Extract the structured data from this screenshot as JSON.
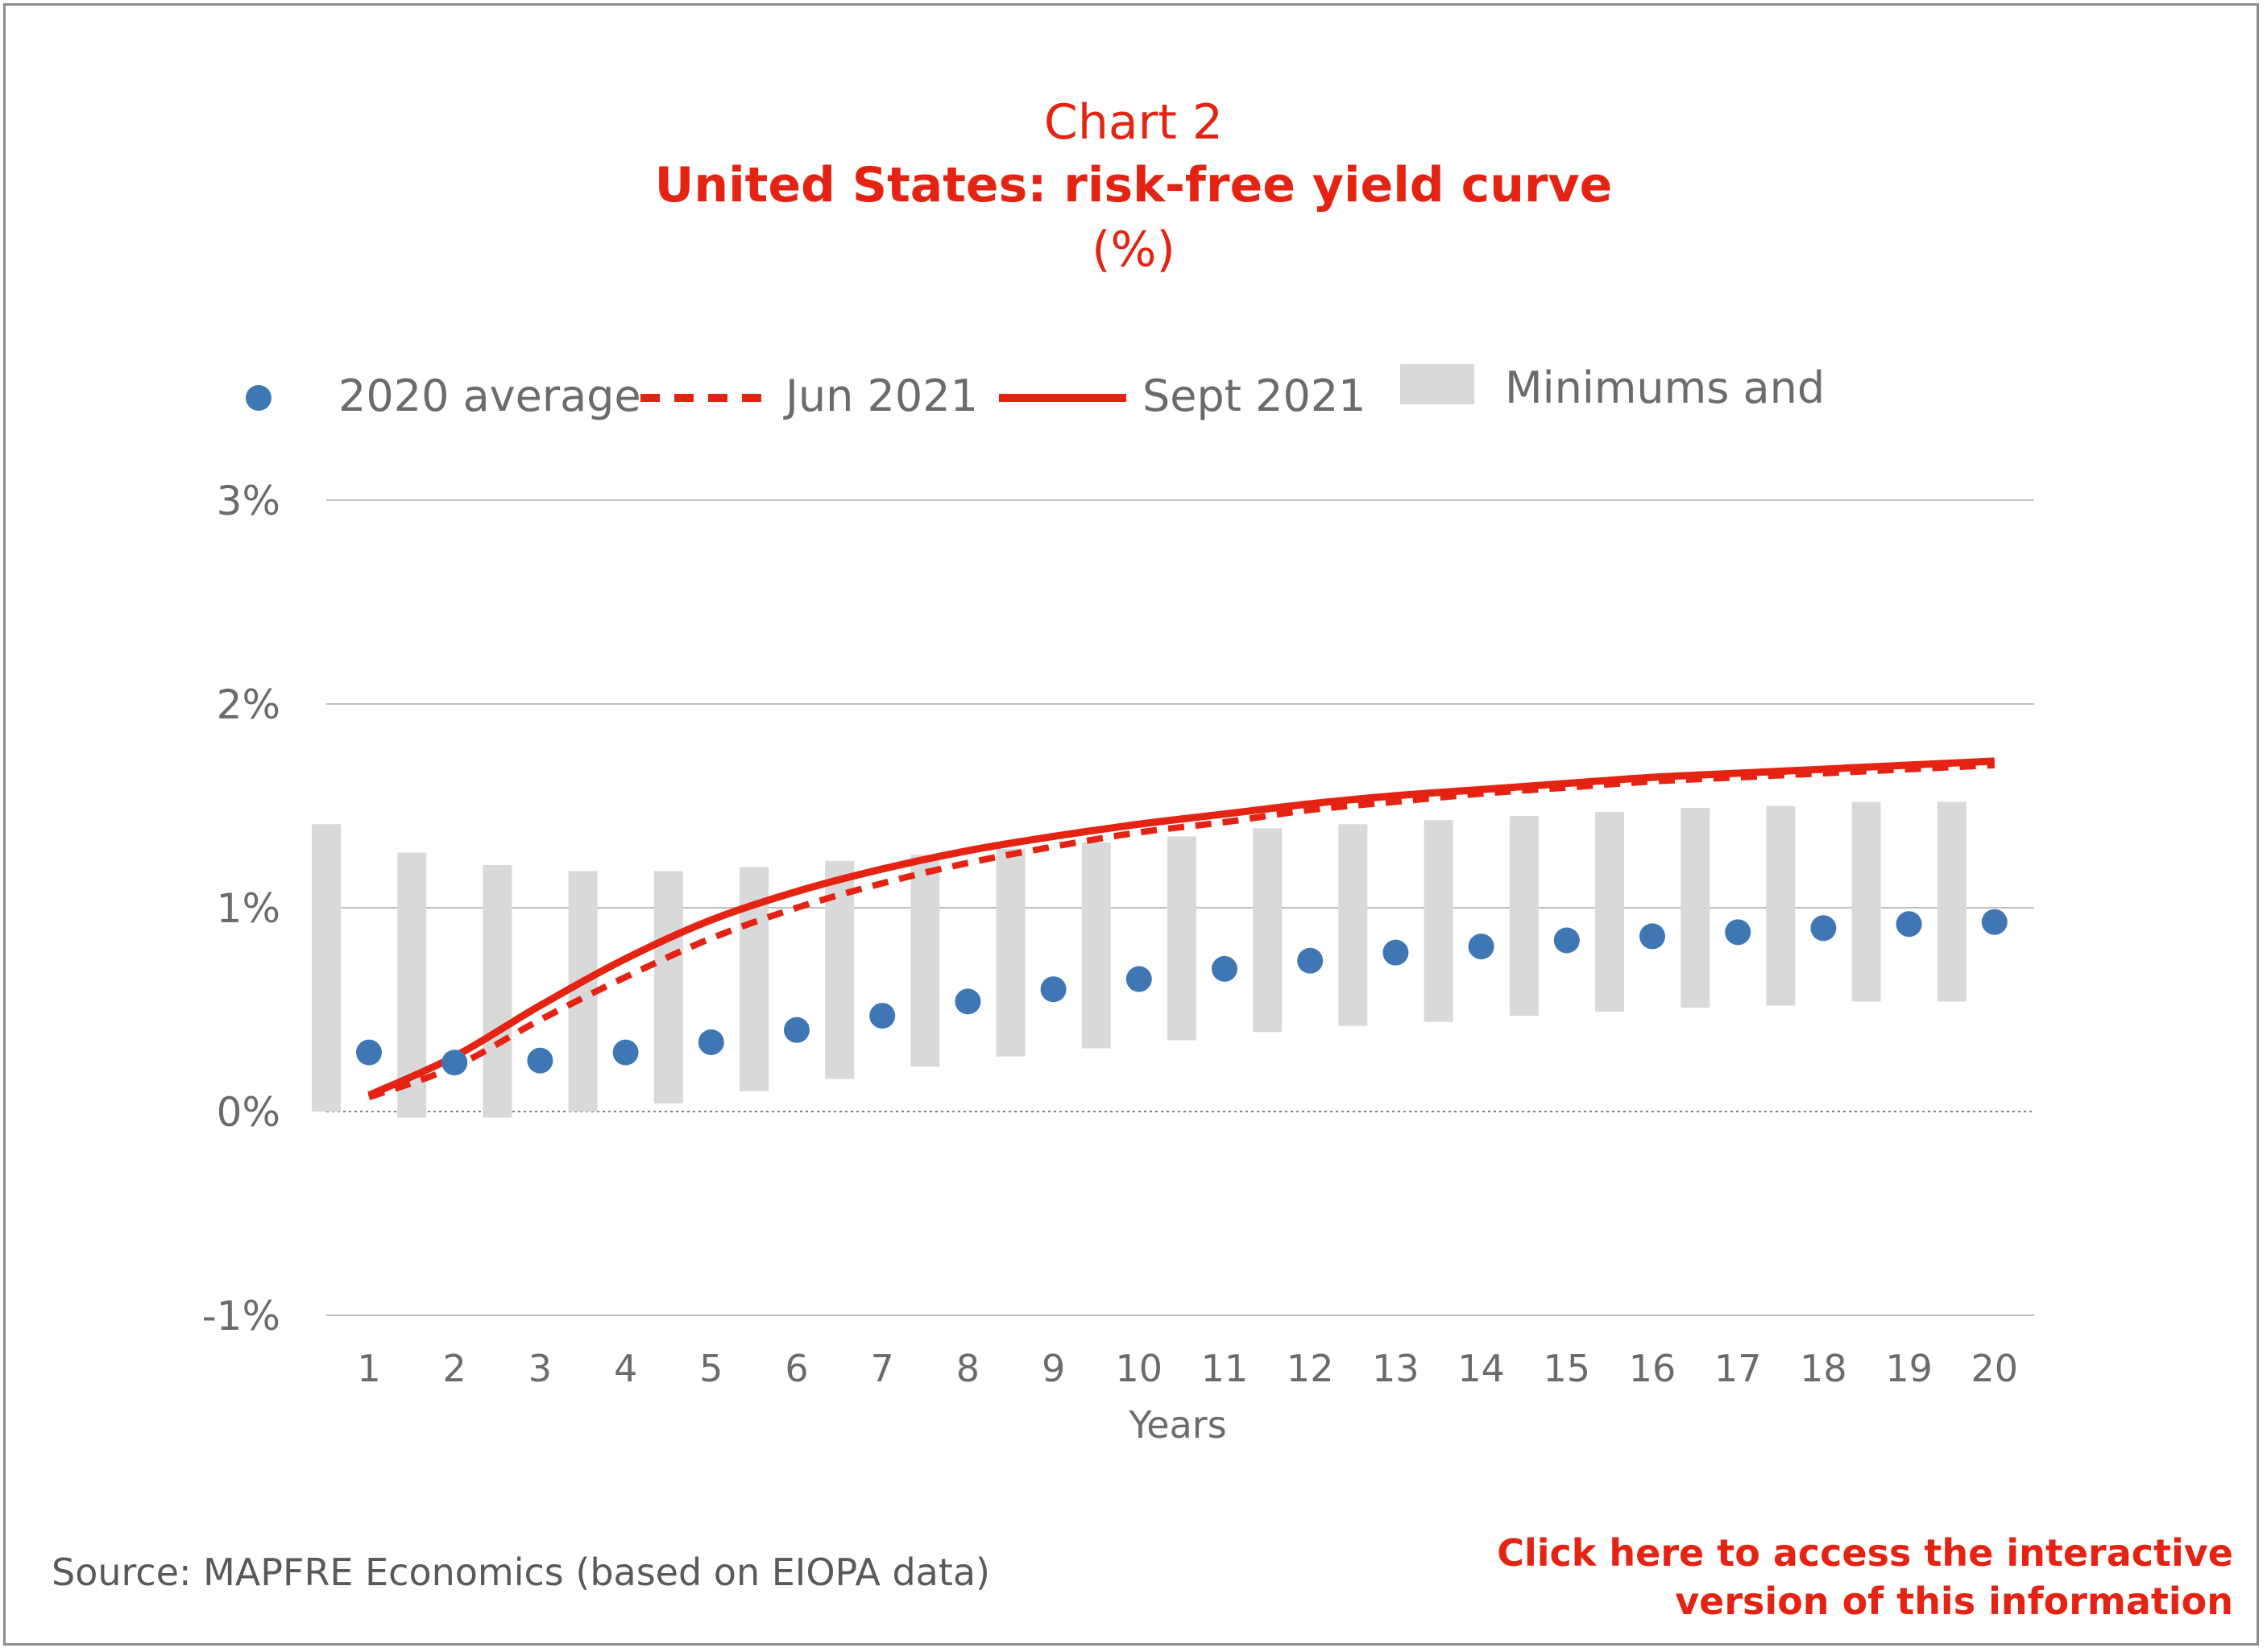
{
  "title": {
    "line1": "Chart 2",
    "line2": "United States: risk-free yield curve",
    "line3": "(%)"
  },
  "legend": {
    "avg": "2020 average",
    "jun": "Jun 2021",
    "sept": "Sept 2021",
    "minmax": "Minimums and"
  },
  "source": "Source: MAPFRE Economics (based on EIOPA data)",
  "link": {
    "line1": "Click here to access the interactive",
    "line2": "version of this information"
  },
  "colors": {
    "red": "#e42313",
    "blue": "#3f77b5",
    "bar": "#d9d9d9"
  },
  "chart_data": {
    "type": "line",
    "xlabel": "Years",
    "ylabel": "",
    "x": [
      1,
      2,
      3,
      4,
      5,
      6,
      7,
      8,
      9,
      10,
      11,
      12,
      13,
      14,
      15,
      16,
      17,
      18,
      19,
      20
    ],
    "ylim": [
      -1,
      3
    ],
    "yticks": [
      -1,
      0,
      1,
      2,
      3
    ],
    "ytick_labels": [
      "-1%",
      "0%",
      "1%",
      "2%",
      "3%"
    ],
    "grid": true,
    "legend_position": "top",
    "series": [
      {
        "name": "2020 average",
        "kind": "scatter",
        "values": [
          0.29,
          0.24,
          0.25,
          0.29,
          0.34,
          0.4,
          0.47,
          0.54,
          0.6,
          0.65,
          0.7,
          0.74,
          0.78,
          0.81,
          0.84,
          0.86,
          0.88,
          0.9,
          0.92,
          0.93
        ]
      },
      {
        "name": "Jun 2021",
        "kind": "dashed-line",
        "values": [
          0.07,
          0.22,
          0.45,
          0.66,
          0.85,
          1.0,
          1.12,
          1.22,
          1.3,
          1.37,
          1.42,
          1.48,
          1.52,
          1.56,
          1.59,
          1.62,
          1.64,
          1.66,
          1.68,
          1.7
        ]
      },
      {
        "name": "Sept 2021",
        "kind": "solid-line",
        "values": [
          0.08,
          0.27,
          0.52,
          0.75,
          0.94,
          1.08,
          1.19,
          1.28,
          1.35,
          1.41,
          1.46,
          1.51,
          1.55,
          1.58,
          1.61,
          1.64,
          1.66,
          1.68,
          1.7,
          1.72
        ]
      },
      {
        "name": "Minimums and",
        "kind": "range-bar",
        "min": [
          0.0,
          -0.03,
          -0.03,
          0.0,
          0.04,
          0.1,
          0.16,
          0.22,
          0.27,
          0.31,
          0.35,
          0.39,
          0.42,
          0.44,
          0.47,
          0.49,
          0.51,
          0.52,
          0.54,
          0.54
        ],
        "max": [
          1.41,
          1.27,
          1.21,
          1.18,
          1.18,
          1.2,
          1.23,
          1.26,
          1.29,
          1.32,
          1.35,
          1.39,
          1.41,
          1.43,
          1.45,
          1.47,
          1.49,
          1.5,
          1.52,
          1.52
        ]
      }
    ]
  }
}
